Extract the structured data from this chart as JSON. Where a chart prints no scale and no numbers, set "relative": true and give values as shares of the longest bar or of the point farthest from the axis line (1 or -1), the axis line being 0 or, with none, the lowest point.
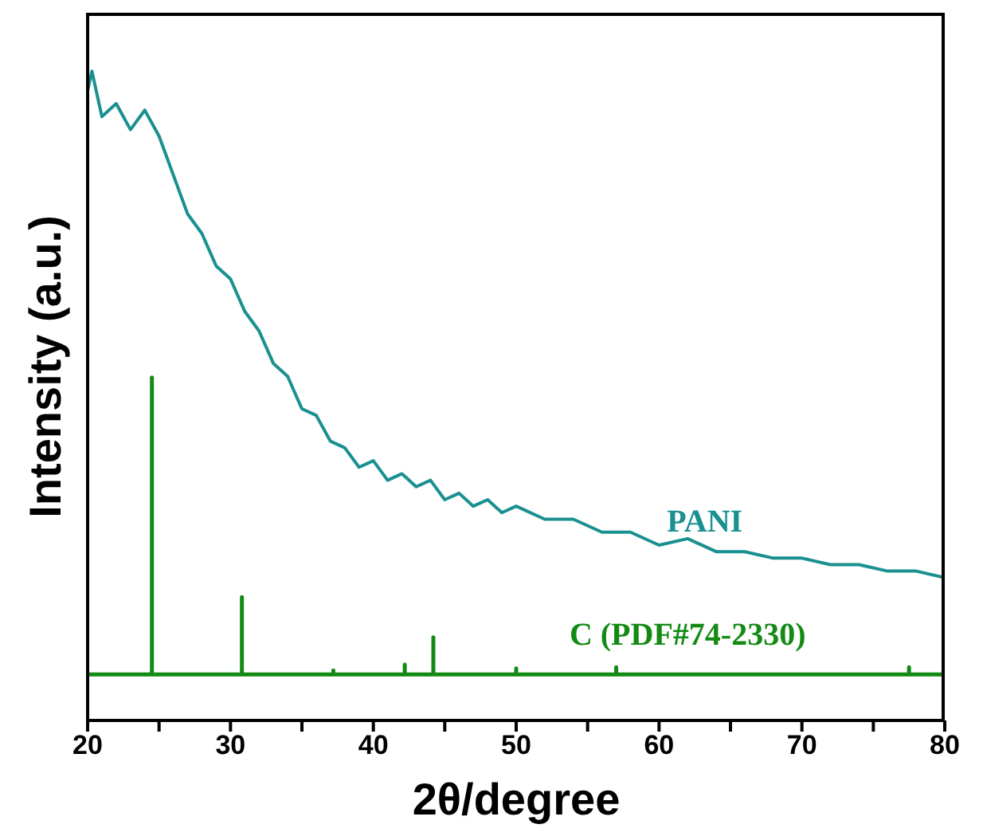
{
  "chart_data": {
    "type": "line",
    "relative": true,
    "xlabel": "2θ/degree",
    "ylabel": "Intensity (a.u.)",
    "xlim": [
      20,
      80
    ],
    "xticks": [
      20,
      {
        "value": 25,
        "label": null
      },
      30,
      {
        "value": 35,
        "label": null
      },
      40,
      {
        "value": 45,
        "label": null
      },
      50,
      {
        "value": 55,
        "label": null
      },
      60,
      {
        "value": 65,
        "label": null
      },
      70,
      {
        "value": 75,
        "label": null
      },
      80
    ],
    "legend": false,
    "marker": "none",
    "line_style": "solid",
    "series": [
      {
        "name": "PANI",
        "color": "#1a9090",
        "x": [
          20,
          20.3,
          21,
          22,
          23,
          24,
          25,
          26,
          27,
          28,
          29,
          30,
          31,
          32,
          33,
          34,
          35,
          36,
          37,
          38,
          39,
          40,
          41,
          42,
          43,
          44,
          45,
          46,
          47,
          48,
          49,
          50,
          52,
          54,
          56,
          58,
          60,
          62,
          64,
          66,
          68,
          70,
          72,
          74,
          76,
          78,
          80
        ],
        "values": [
          0.97,
          1.0,
          0.93,
          0.95,
          0.91,
          0.94,
          0.9,
          0.84,
          0.78,
          0.75,
          0.7,
          0.68,
          0.63,
          0.6,
          0.55,
          0.53,
          0.48,
          0.47,
          0.43,
          0.42,
          0.39,
          0.4,
          0.37,
          0.38,
          0.36,
          0.37,
          0.34,
          0.35,
          0.33,
          0.34,
          0.32,
          0.33,
          0.31,
          0.31,
          0.29,
          0.29,
          0.27,
          0.28,
          0.26,
          0.26,
          0.25,
          0.25,
          0.24,
          0.24,
          0.23,
          0.23,
          0.22
        ]
      },
      {
        "name": "C (PDF#74-2330)",
        "color": "#138a13",
        "x": [
          20,
          24.5,
          24.5,
          24.5,
          30.8,
          30.8,
          30.8,
          37.2,
          37.2,
          37.2,
          42.2,
          42.2,
          42.2,
          44.2,
          44.2,
          44.2,
          50,
          50,
          50,
          57,
          57,
          57,
          77.5,
          77.5,
          77.5,
          80
        ],
        "values": [
          0.071,
          0.071,
          0.528,
          0.071,
          0.071,
          0.19,
          0.071,
          0.071,
          0.077,
          0.071,
          0.071,
          0.086,
          0.071,
          0.071,
          0.128,
          0.071,
          0.071,
          0.08,
          0.071,
          0.071,
          0.082,
          0.071,
          0.071,
          0.082,
          0.071,
          0.071
        ]
      }
    ]
  }
}
